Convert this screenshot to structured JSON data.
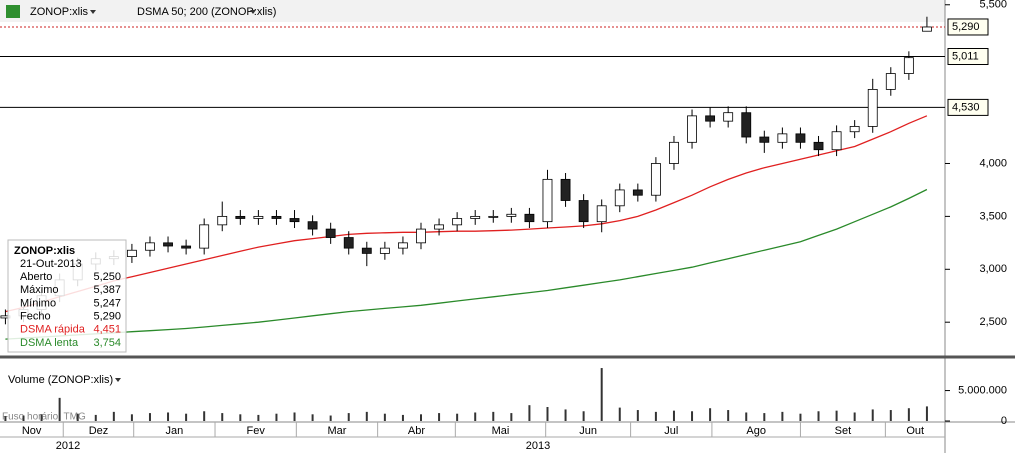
{
  "header": {
    "symbol": "ZONOP:xlis",
    "indicator": "DSMA 50; 200 (ZONOP:xlis)"
  },
  "info": {
    "title": "ZONOP:xlis",
    "date": "21-Out-2013",
    "rows": [
      {
        "label": "Aberto",
        "value": "5,250"
      },
      {
        "label": "Máximo",
        "value": "5,387"
      },
      {
        "label": "Mínimo",
        "value": "5,247"
      },
      {
        "label": "Fecho",
        "value": "5,290"
      },
      {
        "label": "DSMA rápida",
        "value": "4,451"
      },
      {
        "label": "DSMA lenta",
        "value": "3,754"
      }
    ]
  },
  "volume_title": "Volume (ZONOP:xlis)",
  "timezone": "Fuso horário: TMG",
  "years": [
    "2012",
    "2013"
  ],
  "chart_data": [
    {
      "type": "candlestick",
      "xlim": [
        -0.3,
        52.0
      ],
      "ylim": [
        2190,
        5545
      ],
      "yticks": [
        {
          "value": 5500,
          "label": "5,500"
        },
        {
          "value": 4000,
          "label": "4,000"
        },
        {
          "value": 3500,
          "label": "3,500"
        },
        {
          "value": 3000,
          "label": "3,000"
        },
        {
          "value": 2500,
          "label": "2,500"
        }
      ],
      "xticks": [
        {
          "value": -0.3,
          "label": "Nov"
        },
        {
          "value": 3.2,
          "label": "Dez"
        },
        {
          "value": 7.1,
          "label": "Jan"
        },
        {
          "value": 11.6,
          "label": "Fev"
        },
        {
          "value": 16.1,
          "label": "Mar"
        },
        {
          "value": 20.6,
          "label": "Abr"
        },
        {
          "value": 24.9,
          "label": "Mai"
        },
        {
          "value": 29.9,
          "label": "Jun"
        },
        {
          "value": 34.6,
          "label": "Jul"
        },
        {
          "value": 39.1,
          "label": "Ago"
        },
        {
          "value": 44.0,
          "label": "Set"
        },
        {
          "value": 48.7,
          "label": "Out"
        }
      ],
      "up_color": "#ffffff",
      "down_color": "#222222",
      "open": [
        2540,
        2560,
        2620,
        2750,
        2900,
        3050,
        3100,
        3120,
        3180,
        3250,
        3220,
        3200,
        3420,
        3500,
        3480,
        3500,
        3480,
        3450,
        3380,
        3300,
        3200,
        3150,
        3200,
        3250,
        3380,
        3420,
        3480,
        3500,
        3500,
        3520,
        3450,
        3850,
        3650,
        3450,
        3600,
        3750,
        3700,
        4000,
        4200,
        4450,
        4400,
        4480,
        4250,
        4200,
        4280,
        4200,
        4130,
        4300,
        4350,
        4700,
        4850,
        5250
      ],
      "high": [
        2620,
        2680,
        2810,
        2960,
        3110,
        3160,
        3180,
        3240,
        3310,
        3310,
        3280,
        3480,
        3640,
        3560,
        3560,
        3560,
        3560,
        3510,
        3440,
        3360,
        3260,
        3260,
        3310,
        3440,
        3480,
        3540,
        3560,
        3560,
        3580,
        3580,
        3940,
        3910,
        3710,
        3660,
        3810,
        3810,
        4060,
        4260,
        4510,
        4530,
        4540,
        4540,
        4310,
        4340,
        4340,
        4260,
        4360,
        4410,
        4800,
        4910,
        5060,
        5387
      ],
      "low": [
        2480,
        2500,
        2560,
        2690,
        2840,
        2990,
        3040,
        3060,
        3120,
        3160,
        3140,
        3140,
        3360,
        3420,
        3420,
        3420,
        3390,
        3320,
        3240,
        3140,
        3030,
        3090,
        3140,
        3190,
        3320,
        3360,
        3420,
        3440,
        3440,
        3390,
        3390,
        3590,
        3390,
        3350,
        3540,
        3640,
        3640,
        3940,
        4140,
        4340,
        4340,
        4190,
        4100,
        4140,
        4140,
        4070,
        4070,
        4240,
        4290,
        4640,
        4790,
        5247
      ],
      "close": [
        2560,
        2620,
        2750,
        2900,
        3050,
        3100,
        3120,
        3180,
        3250,
        3220,
        3200,
        3420,
        3500,
        3480,
        3500,
        3480,
        3450,
        3380,
        3300,
        3200,
        3150,
        3200,
        3250,
        3380,
        3420,
        3480,
        3500,
        3500,
        3520,
        3450,
        3850,
        3650,
        3450,
        3600,
        3750,
        3700,
        4000,
        4200,
        4450,
        4400,
        4480,
        4250,
        4200,
        4280,
        4200,
        4130,
        4300,
        4350,
        4700,
        4850,
        5000,
        5290
      ],
      "series": [
        {
          "name": "DSMA rápida",
          "color": "#e02020",
          "values": [
            2600,
            2640,
            2690,
            2740,
            2790,
            2840,
            2890,
            2930,
            2970,
            3010,
            3050,
            3090,
            3130,
            3170,
            3210,
            3240,
            3270,
            3290,
            3310,
            3330,
            3340,
            3345,
            3350,
            3350,
            3355,
            3360,
            3360,
            3365,
            3370,
            3380,
            3390,
            3400,
            3410,
            3430,
            3460,
            3500,
            3560,
            3630,
            3700,
            3780,
            3850,
            3910,
            3960,
            4000,
            4040,
            4080,
            4120,
            4160,
            4230,
            4300,
            4380,
            4451
          ]
        },
        {
          "name": "DSMA lenta",
          "color": "#2a8a2a",
          "values": [
            2340,
            2350,
            2360,
            2370,
            2380,
            2390,
            2400,
            2410,
            2420,
            2430,
            2440,
            2455,
            2470,
            2485,
            2500,
            2520,
            2540,
            2560,
            2580,
            2600,
            2615,
            2630,
            2645,
            2660,
            2680,
            2700,
            2720,
            2740,
            2760,
            2780,
            2800,
            2825,
            2850,
            2875,
            2900,
            2930,
            2960,
            2990,
            3020,
            3060,
            3100,
            3140,
            3180,
            3220,
            3260,
            3320,
            3380,
            3450,
            3520,
            3590,
            3670,
            3754
          ]
        }
      ],
      "price_lines": [
        {
          "value": 5290,
          "label": "5,290",
          "color": "#cc2222",
          "dashed": true
        },
        {
          "value": 5011,
          "label": "5,011",
          "color": "#000000",
          "dashed": false
        },
        {
          "value": 4530,
          "label": "4,530",
          "color": "#000000",
          "dashed": false
        }
      ]
    },
    {
      "type": "volume",
      "xlim": [
        -0.3,
        52.0
      ],
      "ylim": [
        0,
        9200000
      ],
      "color": "#333333",
      "yticks": [
        {
          "value": 5000000,
          "label": "5.000.000"
        },
        0
      ],
      "values": [
        800000,
        900000,
        1100000,
        3800000,
        1200000,
        1000000,
        1500000,
        1100000,
        1300000,
        1400000,
        1200000,
        1600000,
        1300000,
        1100000,
        1000000,
        1200000,
        1400000,
        1100000,
        900000,
        1300000,
        1500000,
        1200000,
        1000000,
        1100000,
        1300000,
        1200000,
        1400000,
        1500000,
        1300000,
        2600000,
        2300000,
        1900000,
        1600000,
        8700000,
        2200000,
        1800000,
        1500000,
        1700000,
        1600000,
        2100000,
        1800000,
        1400000,
        1300000,
        1500000,
        1200000,
        1600000,
        1700000,
        1400000,
        1900000,
        1800000,
        2100000,
        2400000
      ]
    }
  ]
}
